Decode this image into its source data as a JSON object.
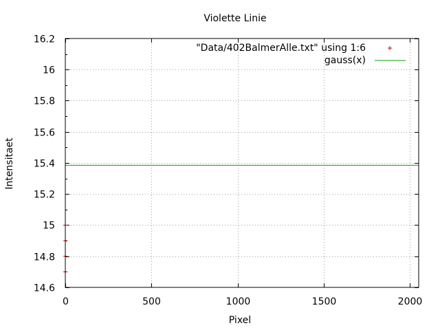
{
  "chart_data": {
    "type": "scatter",
    "title": "Violette Linie",
    "xlabel": "Pixel",
    "ylabel": "Intensitaet",
    "xlim": [
      0,
      2050
    ],
    "ylim": [
      14.6,
      16.2
    ],
    "x_ticks": [
      0,
      500,
      1000,
      1500,
      2000
    ],
    "y_ticks": [
      14.6,
      14.8,
      15.0,
      15.2,
      15.4,
      15.6,
      15.8,
      16.0,
      16.2
    ],
    "x_tick_labels": [
      "0",
      "500",
      "1000",
      "1500",
      "2000"
    ],
    "y_tick_labels": [
      "14.6",
      "14.8",
      "15",
      "15.2",
      "15.4",
      "15.6",
      "15.8",
      "16",
      "16.2"
    ],
    "grid": true,
    "legend_position": "top-right",
    "series": [
      {
        "name": "\"Data/402BalmerAlle.txt\" using 1:6",
        "kind": "points",
        "marker": "plus",
        "color": "#c00000",
        "points": [
          [
            0,
            14.7
          ],
          [
            0,
            14.8
          ],
          [
            0,
            14.9
          ],
          [
            0,
            15.0
          ]
        ]
      },
      {
        "name": "gauss(x)",
        "kind": "line",
        "color": "#00a000",
        "x": [
          0,
          2050
        ],
        "y": [
          15.385,
          15.385
        ]
      }
    ]
  }
}
